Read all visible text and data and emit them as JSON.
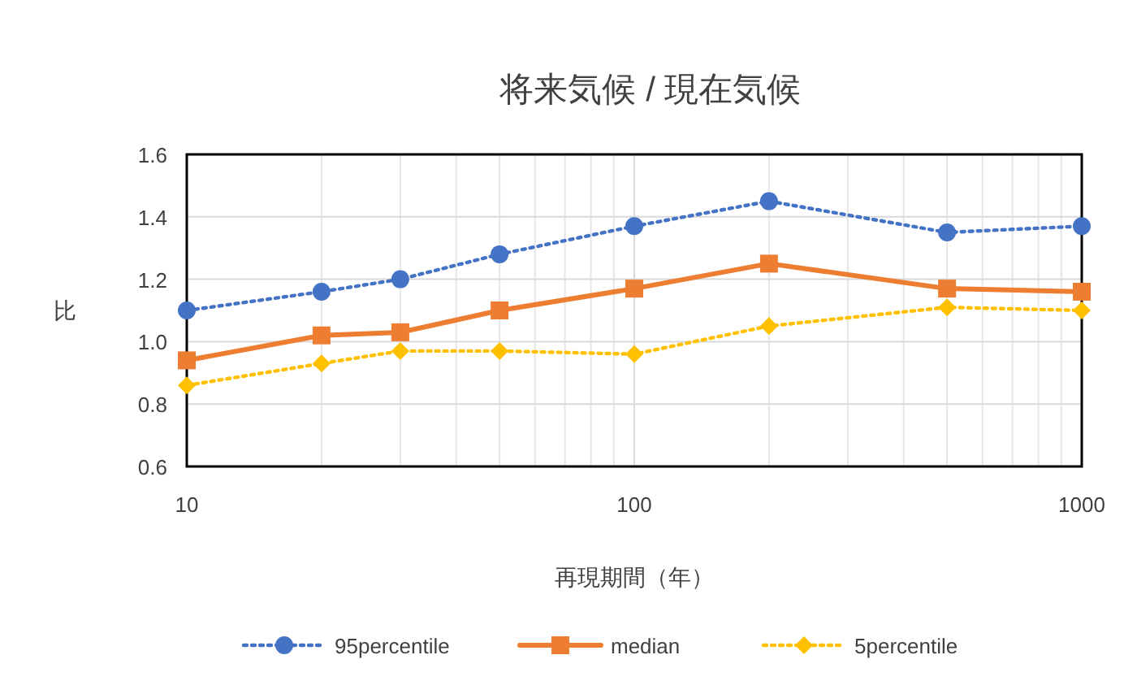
{
  "chart_data": {
    "type": "line",
    "title": "将来気候 / 現在気候",
    "xlabel": "再現期間（年）",
    "ylabel": "比",
    "x": [
      10,
      20,
      30,
      50,
      100,
      200,
      500,
      1000
    ],
    "series": [
      {
        "name": "95percentile",
        "color": "#4472c4",
        "marker": "circle",
        "line_style": "dotted",
        "values": [
          1.1,
          1.16,
          1.2,
          1.28,
          1.37,
          1.45,
          1.35,
          1.37
        ]
      },
      {
        "name": "median",
        "color": "#ed7d31",
        "marker": "square",
        "line_style": "solid",
        "values": [
          0.94,
          1.02,
          1.03,
          1.1,
          1.17,
          1.25,
          1.17,
          1.16
        ]
      },
      {
        "name": "5percentile",
        "color": "#ffc000",
        "marker": "diamond",
        "line_style": "dotted",
        "values": [
          0.86,
          0.93,
          0.97,
          0.97,
          0.96,
          1.05,
          1.11,
          1.1
        ]
      }
    ],
    "log": "x",
    "xlim": [
      10,
      1000
    ],
    "xticks": [
      10,
      100,
      1000
    ],
    "ylim": [
      0.6,
      1.6
    ],
    "yticks": [
      {
        "value": 0.6,
        "label": "0.6"
      },
      {
        "value": 0.8,
        "label": "0.8"
      },
      {
        "value": 1.0,
        "label": "1.0"
      },
      {
        "value": 1.2,
        "label": "1.2"
      },
      {
        "value": 1.4,
        "label": "1.4"
      },
      {
        "value": 1.6,
        "label": "1.6"
      }
    ],
    "grid": true,
    "legend": "bottom"
  }
}
